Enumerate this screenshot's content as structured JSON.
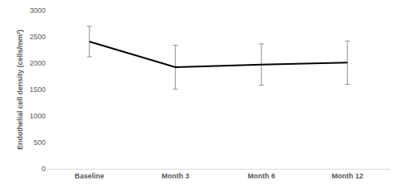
{
  "chart_data": {
    "type": "line",
    "y_label": "Endothelial cell density (cells/mm²)",
    "categories": [
      "Baseline",
      "Month 3",
      "Month 6",
      "Month 12"
    ],
    "series": [
      {
        "name": "Endothelial cell density",
        "color": "#000000",
        "values": [
          2410,
          1925,
          1975,
          2010
        ],
        "errors": [
          290,
          415,
          390,
          410
        ]
      }
    ],
    "ylim": [
      0,
      3000
    ],
    "yticks": [
      0,
      500,
      1000,
      1500,
      2000,
      2500,
      3000
    ],
    "grid": false
  }
}
